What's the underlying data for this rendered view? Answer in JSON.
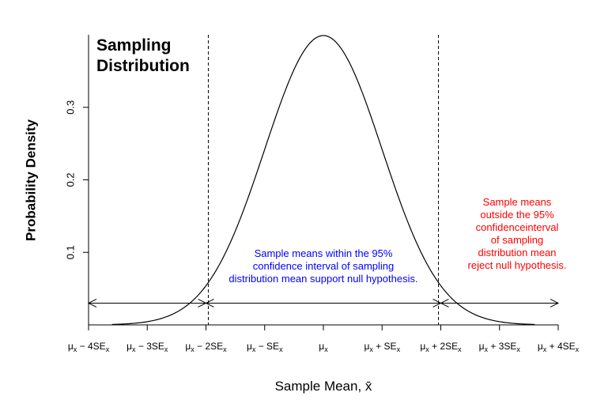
{
  "chart_data": {
    "type": "line",
    "title": [
      "Sampling",
      "Distribution"
    ],
    "xlabel": "Sample Mean, x̄",
    "ylabel": "Probability Density",
    "xlim": [
      -4,
      4
    ],
    "ylim": [
      0,
      0.4
    ],
    "y_ticks": [
      0.1,
      0.2,
      0.3
    ],
    "y_tick_labels": [
      "0.1",
      "0.2",
      "0.3"
    ],
    "x_ticks": [
      -4,
      -3,
      -2,
      -1,
      0,
      1,
      2,
      3,
      4
    ],
    "x_tick_labels": [
      {
        "base": "μ",
        "sub": "x",
        "op": " − ",
        "coef": "4SE",
        "sub2": "x"
      },
      {
        "base": "μ",
        "sub": "x",
        "op": " − ",
        "coef": "3SE",
        "sub2": "x"
      },
      {
        "base": "μ",
        "sub": "x",
        "op": " − ",
        "coef": "2SE",
        "sub2": "x"
      },
      {
        "base": "μ",
        "sub": "x",
        "op": " − ",
        "coef": "SE",
        "sub2": "x"
      },
      {
        "base": "μ",
        "sub": "x",
        "op": "",
        "coef": "",
        "sub2": ""
      },
      {
        "base": "μ",
        "sub": "x",
        "op": " + ",
        "coef": "SE",
        "sub2": "x"
      },
      {
        "base": "μ",
        "sub": "x",
        "op": " + ",
        "coef": "2SE",
        "sub2": "x"
      },
      {
        "base": "μ",
        "sub": "x",
        "op": " + ",
        "coef": "3SE",
        "sub2": "x"
      },
      {
        "base": "μ",
        "sub": "x",
        "op": " + ",
        "coef": "4SE",
        "sub2": "x"
      }
    ],
    "series": [
      {
        "distribution": "standard normal",
        "mean": 0,
        "sd": 1,
        "x_range": [
          -3.6,
          3.6
        ],
        "color": "#000000"
      }
    ],
    "vlines": [
      -1.96,
      1.96
    ],
    "arrows": [
      [
        -4,
        -2
      ],
      [
        -2,
        2
      ],
      [
        2,
        4
      ]
    ],
    "arrow_y": 0.03,
    "annotations": [
      {
        "lines": [
          "Sample means within the 95%",
          "confidence interval of sampling",
          "distribution mean support null hypothesis."
        ],
        "color": "#0000FF",
        "x": 0,
        "y": 0.08
      },
      {
        "lines": [
          "Sample means",
          "outside the 95%",
          "confidenceinterval",
          "of sampling",
          "distribution mean",
          "reject null hypothesis."
        ],
        "color": "#FF0000",
        "x": 3.3,
        "y": 0.125
      }
    ],
    "grid": false
  }
}
